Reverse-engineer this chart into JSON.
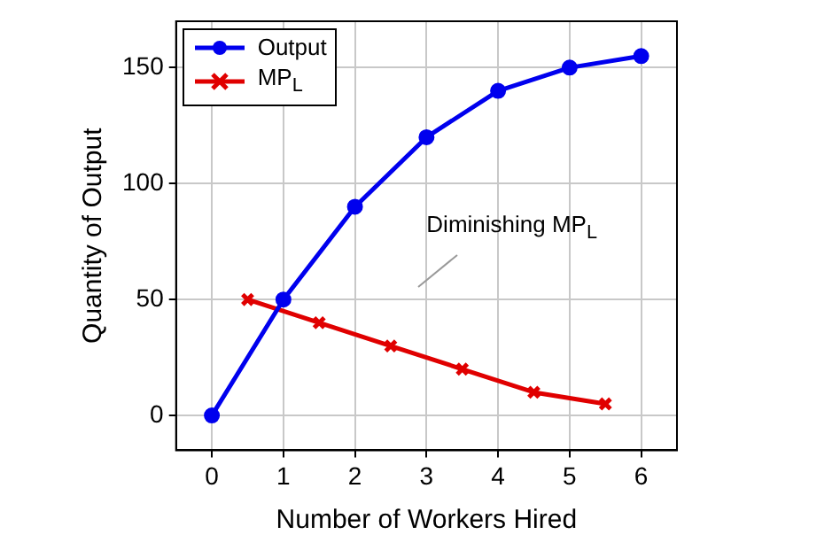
{
  "chart_data": {
    "type": "line",
    "xlabel": "Number of Workers Hired",
    "ylabel": "Quantity of Output",
    "xlim": [
      -0.5,
      6.5
    ],
    "xticks": [
      0,
      1,
      2,
      3,
      4,
      5,
      6
    ],
    "ylim": [
      -15,
      170
    ],
    "yticks": [
      0,
      50,
      100,
      150
    ],
    "grid": true,
    "legend": "top left",
    "line_style": "solid",
    "series": [
      {
        "name": "Output",
        "color": "#0000ee",
        "marker": "circle",
        "x": [
          0,
          1,
          2,
          3,
          4,
          5,
          6
        ],
        "values": [
          0,
          50,
          90,
          120,
          140,
          150,
          155
        ]
      },
      {
        "name": "MP$_{L}$",
        "color": "#e00000",
        "marker": "cross",
        "x": [
          0.5,
          1.5,
          2.5,
          3.5,
          4.5,
          5.5
        ],
        "values": [
          50,
          40,
          30,
          20,
          10,
          5
        ]
      }
    ],
    "annotations": [
      "Diminishing MP$_{L}$"
    ]
  }
}
